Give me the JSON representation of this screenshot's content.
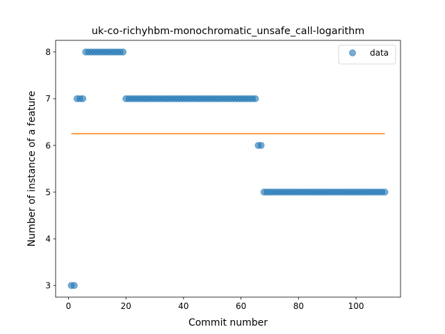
{
  "chart_data": {
    "type": "scatter",
    "title": "uk-co-richyhbm-monochromatic_unsafe_call-logarithm",
    "xlabel": "Commit number",
    "ylabel": "Number of instance of a feature",
    "xlim": [
      -4.45,
      115.45
    ],
    "ylim": [
      2.75,
      8.25
    ],
    "xticks": [
      0,
      20,
      40,
      60,
      80,
      100
    ],
    "yticks": [
      3,
      4,
      5,
      6,
      7,
      8
    ],
    "grid": false,
    "legend": {
      "position": "top-right",
      "entries": [
        "data"
      ]
    },
    "colors": {
      "points": "#1f77b4",
      "fit_line": "#ff7f0e"
    },
    "series": [
      {
        "name": "data",
        "kind": "scatter",
        "segments": [
          {
            "from": 1,
            "to": 2,
            "y": 3
          },
          {
            "from": 3,
            "to": 5,
            "y": 7
          },
          {
            "from": 6,
            "to": 19,
            "y": 8
          },
          {
            "from": 20,
            "to": 65,
            "y": 7
          },
          {
            "from": 66,
            "to": 67,
            "y": 6
          },
          {
            "from": 68,
            "to": 110,
            "y": 5
          }
        ]
      },
      {
        "kind": "line",
        "x": [
          1,
          110
        ],
        "y": [
          6.25,
          6.25
        ]
      }
    ]
  }
}
